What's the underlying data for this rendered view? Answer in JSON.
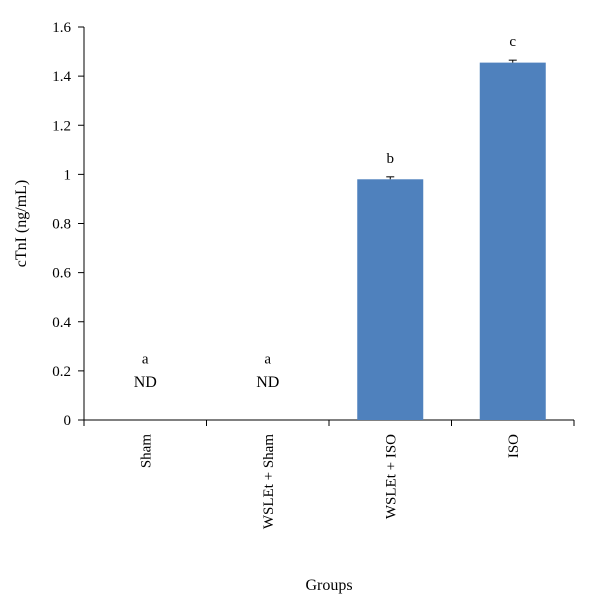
{
  "chart_data": {
    "type": "bar",
    "xlabel": "Groups",
    "ylabel": "cTnI (ng/mL)",
    "ylim": [
      0,
      1.6
    ],
    "ytick_step": 0.2,
    "yticks": [
      "0",
      "0.2",
      "0.4",
      "0.6",
      "0.8",
      "1",
      "1.2",
      "1.4",
      "1.6"
    ],
    "categories": [
      "Sham",
      "WSLEt + Sham",
      "WSLEt + ISO",
      "ISO"
    ],
    "values": [
      null,
      null,
      0.98,
      1.455
    ],
    "error": [
      null,
      null,
      0.01,
      0.01
    ],
    "significance_letters": [
      "a",
      "a",
      "b",
      "c"
    ],
    "value_labels": [
      "ND",
      "ND",
      "",
      ""
    ],
    "bar_color": "#4f81bd",
    "grid": false,
    "legend": "none"
  }
}
